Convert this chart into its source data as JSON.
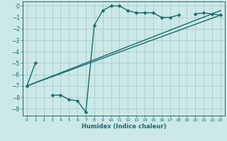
{
  "background_color": "#cce8e8",
  "grid_color": "#a8cccc",
  "line_color": "#1a6b6b",
  "marker": "D",
  "markersize": 2.5,
  "linewidth": 1.0,
  "xlabel": "Humidex (Indice chaleur)",
  "xlim": [
    -0.5,
    23.5
  ],
  "ylim": [
    -9.6,
    0.4
  ],
  "yticks": [
    0,
    -1,
    -2,
    -3,
    -4,
    -5,
    -6,
    -7,
    -8,
    -9
  ],
  "xticks": [
    0,
    1,
    2,
    3,
    4,
    5,
    6,
    7,
    8,
    9,
    10,
    11,
    12,
    13,
    14,
    15,
    16,
    17,
    18,
    19,
    20,
    21,
    22,
    23
  ],
  "series": [
    {
      "x": [
        0,
        1,
        3,
        4,
        5,
        6,
        7,
        8,
        9,
        10,
        11,
        12,
        13,
        14,
        15,
        16,
        17,
        18,
        20,
        21,
        22,
        23
      ],
      "y": [
        -7.0,
        -5.0,
        -7.8,
        -7.8,
        -8.2,
        -8.3,
        -9.3,
        -1.7,
        -0.4,
        0.0,
        0.0,
        -0.4,
        -0.6,
        -0.6,
        -0.6,
        -1.0,
        -1.0,
        -0.8,
        -0.7,
        -0.6,
        -0.7,
        -0.8
      ]
    },
    {
      "x": [
        0,
        23
      ],
      "y": [
        -7.0,
        -0.8
      ]
    },
    {
      "x": [
        0,
        23
      ],
      "y": [
        -7.0,
        -0.4
      ]
    }
  ]
}
